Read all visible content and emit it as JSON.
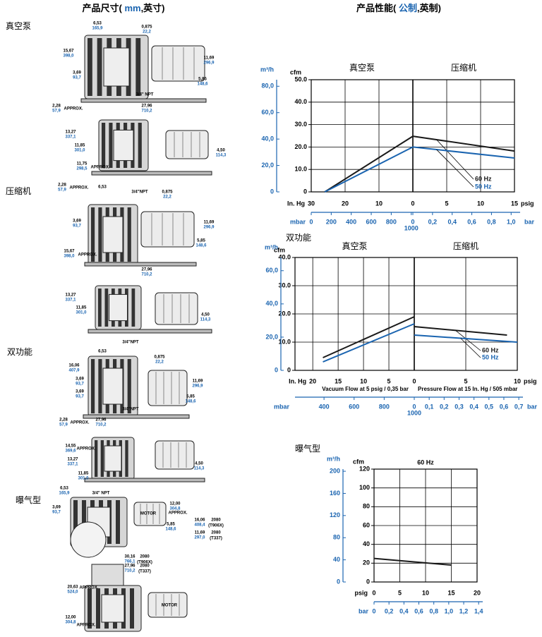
{
  "header": {
    "dimensions_title": {
      "before": "产品尺寸( ",
      "unit": "mm",
      "after": ",英寸)"
    },
    "performance_title": {
      "before": "产品性能( ",
      "unit": "公制",
      "after": ",英制)"
    }
  },
  "sections": [
    "真空泵",
    "压缩机",
    "双功能",
    "曝气型"
  ],
  "drawings": [
    {
      "dims": [
        {
          "in": "6,53",
          "mm": "165,9"
        },
        {
          "in": "0,875",
          "mm": "22,2"
        },
        {
          "in": "15,67",
          "mm": "398,0"
        },
        {
          "in": "11,69",
          "mm": "296,9"
        },
        {
          "in": "3,69",
          "mm": "93,7"
        },
        {
          "in": "5,85",
          "mm": "148,6"
        },
        {
          "in": "27,96",
          "mm": "710,2"
        },
        {
          "in": "2,28",
          "mm": "57,9"
        }
      ],
      "notes": [
        "3/4\" NPT",
        "APPROX."
      ]
    },
    {
      "dims": [
        {
          "in": "13,27",
          "mm": "337,1"
        },
        {
          "in": "11,85",
          "mm": "301,0"
        },
        {
          "in": "11,75",
          "mm": "298,5"
        },
        {
          "in": "4,50",
          "mm": "114,3"
        }
      ],
      "notes": [
        "APPROX."
      ]
    },
    {
      "dims": [
        {
          "in": "2,28",
          "mm": "57,9"
        },
        {
          "in": "0,875",
          "mm": "22,2"
        },
        {
          "in": "3,69",
          "mm": "93,7"
        },
        {
          "in": "11,69",
          "mm": "296,9"
        },
        {
          "in": "5,85",
          "mm": "148,6"
        },
        {
          "in": "15,67",
          "mm": "398,0"
        },
        {
          "in": "27,96",
          "mm": "710,2"
        }
      ],
      "notes": [
        "APPROX.",
        "6,53",
        "3/4\"NPT",
        "APPROX."
      ]
    },
    {
      "dims": [
        {
          "in": "13,27",
          "mm": "337,1"
        },
        {
          "in": "11,85",
          "mm": "301,0"
        },
        {
          "in": "4,50",
          "mm": "114,3"
        }
      ],
      "notes": []
    },
    {
      "dims": [
        {
          "in": "0,875",
          "mm": "22,2"
        },
        {
          "in": "16,06",
          "mm": "407,9"
        },
        {
          "in": "3,69",
          "mm": "93,7"
        },
        {
          "in": "3,69",
          "mm": "93,7"
        },
        {
          "in": "11,69",
          "mm": "296,9"
        },
        {
          "in": "5,85",
          "mm": "148,6"
        },
        {
          "in": "2,28",
          "mm": "57,9"
        },
        {
          "in": "27,96",
          "mm": "710,2"
        }
      ],
      "notes": [
        "6,53",
        "3/4\"NPT",
        "3/4\"NPT",
        "APPROX."
      ]
    },
    {
      "dims": [
        {
          "in": "14,55",
          "mm": "369,6"
        },
        {
          "in": "13,27",
          "mm": "337,1"
        },
        {
          "in": "11,85",
          "mm": "301,0"
        },
        {
          "in": "4,50",
          "mm": "114,3"
        }
      ],
      "notes": [
        "APPROX."
      ]
    },
    {
      "dims": [
        {
          "in": "6,53",
          "mm": "165,9"
        },
        {
          "in": "3,69",
          "mm": "93,7"
        },
        {
          "in": "12,00",
          "mm": "304,8"
        },
        {
          "in": "16,06",
          "mm": "408,4"
        },
        {
          "in": "5,85",
          "mm": "148,6"
        },
        {
          "in": "11,69",
          "mm": "297,0"
        },
        {
          "in": "30,16",
          "mm": "766,1"
        },
        {
          "in": "27,96",
          "mm": "710,2"
        }
      ],
      "notes": [
        "3/4\" NPT",
        "MOTOR",
        "APPROX.",
        "2080",
        "(T906X)",
        "2080",
        "(T337)",
        "2080",
        "(T906X)",
        "2080",
        "(T337)"
      ]
    },
    {
      "dims": [
        {
          "in": "20,63",
          "mm": "524,0"
        },
        {
          "in": "12,00",
          "mm": "304,8"
        }
      ],
      "notes": [
        "APPROX.",
        "MOTOR",
        "APPROX."
      ]
    }
  ],
  "chart_data": [
    {
      "type": "line",
      "y_label": "cfm",
      "y2_label": "m³/h",
      "ylim": [
        0,
        50
      ],
      "yticks": [
        0,
        {
          "value": 10,
          "label": "10.0"
        },
        {
          "value": 20,
          "label": "20.0"
        },
        {
          "value": 30,
          "label": "30.0"
        },
        {
          "value": 40,
          "label": "40.0"
        },
        {
          "value": 50,
          "label": "50.0"
        }
      ],
      "y2lim": [
        0,
        84.95
      ],
      "y2ticks": [
        0,
        {
          "value": 20,
          "label": "20,0"
        },
        {
          "value": 40,
          "label": "40,0"
        },
        {
          "value": 60,
          "label": "60,0"
        },
        {
          "value": 80,
          "label": "80,0"
        }
      ],
      "grid": true,
      "vacuum": {
        "label": "真空泵",
        "x_label": "In. Hg",
        "xlim": [
          30,
          0
        ],
        "xticks": [
          30,
          20,
          10,
          0
        ],
        "metric_label": "mbar",
        "metric_lim": [
          0,
          1016
        ],
        "metric_ticks": [
          0,
          200,
          400,
          600,
          800,
          1000
        ]
      },
      "pressure": {
        "label": "压缩机",
        "x_label": "psig",
        "xlim": [
          0,
          15
        ],
        "xticks": [
          5,
          10,
          15
        ],
        "metric_label": "bar",
        "metric_lim": [
          0,
          1.034
        ],
        "metric_ticks": [
          0,
          {
            "value": 0.2,
            "label": "0,2"
          },
          {
            "value": 0.4,
            "label": "0,4"
          },
          {
            "value": 0.6,
            "label": "0,6"
          },
          {
            "value": 0.8,
            "label": "0,8"
          },
          {
            "value": 1,
            "label": "1,0"
          }
        ]
      },
      "series": [
        {
          "name": "60 Hz",
          "color": "#1a1a1a",
          "vacuum_x": [
            26,
            0
          ],
          "vacuum_values": [
            0,
            24.8
          ],
          "pressure_x": [
            0,
            15
          ],
          "pressure_values": [
            24.8,
            18.2
          ]
        },
        {
          "name": "50 Hz",
          "color": "#1a64b0",
          "vacuum_x": [
            26,
            0
          ],
          "vacuum_values": [
            0,
            20
          ],
          "pressure_x": [
            0,
            15
          ],
          "pressure_values": [
            20,
            15.1
          ]
        }
      ]
    },
    {
      "type": "line",
      "title": "双功能",
      "y_label": "cfm",
      "y2_label": "m³/h",
      "ylim": [
        0,
        40
      ],
      "yticks": [
        0,
        {
          "value": 10,
          "label": "10.0"
        },
        {
          "value": 20,
          "label": "20.0"
        },
        {
          "value": 30,
          "label": "30.0"
        },
        {
          "value": 40,
          "label": "40.0"
        }
      ],
      "y2lim": [
        0,
        67.96
      ],
      "y2ticks": [
        0,
        {
          "value": 20,
          "label": "20,0"
        },
        {
          "value": 40,
          "label": "40,0"
        },
        {
          "value": 60,
          "label": "60,0"
        }
      ],
      "grid": true,
      "vacuum": {
        "label": "真空泵",
        "x_label": "In. Hg",
        "xlim": [
          23.5,
          0
        ],
        "xticks": [
          20,
          15,
          10,
          5,
          0
        ],
        "note": "Vacuum Flow at 5 psig / 0,35 bar",
        "metric_label": "mbar",
        "metric_lim": [
          207,
          1000
        ],
        "metric_ticks": [
          400,
          600,
          800,
          1000
        ]
      },
      "pressure": {
        "label": "压缩机",
        "x_label": "psig",
        "xlim": [
          0,
          10
        ],
        "xticks": [
          5,
          10
        ],
        "note": "Pressure Flow at 15 In. Hg / 505 mbar",
        "metric_label": "bar",
        "metric_lim": [
          0,
          0.69
        ],
        "metric_ticks": [
          0,
          {
            "value": 0.1,
            "label": "0,1"
          },
          {
            "value": 0.2,
            "label": "0,2"
          },
          {
            "value": 0.3,
            "label": "0,3"
          },
          {
            "value": 0.4,
            "label": "0,4"
          },
          {
            "value": 0.5,
            "label": "0,5"
          },
          {
            "value": 0.6,
            "label": "0,6"
          },
          {
            "value": 0.7,
            "label": "0,7"
          }
        ]
      },
      "series": [
        {
          "name": "60 Hz",
          "color": "#1a1a1a",
          "vacuum_x": [
            18,
            0
          ],
          "vacuum_values": [
            4.5,
            19
          ],
          "pressure_x": [
            0,
            9
          ],
          "pressure_values": [
            15.5,
            12.5
          ]
        },
        {
          "name": "50 Hz",
          "color": "#1a64b0",
          "vacuum_x": [
            18,
            0
          ],
          "vacuum_values": [
            3,
            16.5
          ],
          "pressure_x": [
            0,
            10
          ],
          "pressure_values": [
            12.5,
            10
          ]
        }
      ]
    },
    {
      "type": "line",
      "title": "曝气型",
      "subtitle": "60 Hz",
      "y_label": "cfm",
      "y2_label": "m³/h",
      "ylim": [
        0,
        120
      ],
      "yticks": [
        0,
        20,
        40,
        60,
        80,
        100,
        120
      ],
      "y2lim": [
        0,
        203.9
      ],
      "y2ticks": [
        0,
        40,
        80,
        120,
        160,
        200
      ],
      "grid": true,
      "x_label": "psig",
      "xlim": [
        0,
        20
      ],
      "xticks": [
        0,
        5,
        10,
        15,
        20
      ],
      "metric_label": "bar",
      "metric_lim": [
        0,
        1.379
      ],
      "metric_ticks": [
        0,
        {
          "value": 0.2,
          "label": "0,2"
        },
        {
          "value": 0.4,
          "label": "0,4"
        },
        {
          "value": 0.6,
          "label": "0,6"
        },
        {
          "value": 0.8,
          "label": "0,8"
        },
        {
          "value": 1,
          "label": "1,0"
        },
        {
          "value": 1.2,
          "label": "1,2"
        },
        {
          "value": 1.4,
          "label": "1,4"
        }
      ],
      "series": [
        {
          "color": "#1a1a1a",
          "x": [
            0,
            15
          ],
          "values": [
            25,
            18
          ]
        }
      ]
    }
  ]
}
